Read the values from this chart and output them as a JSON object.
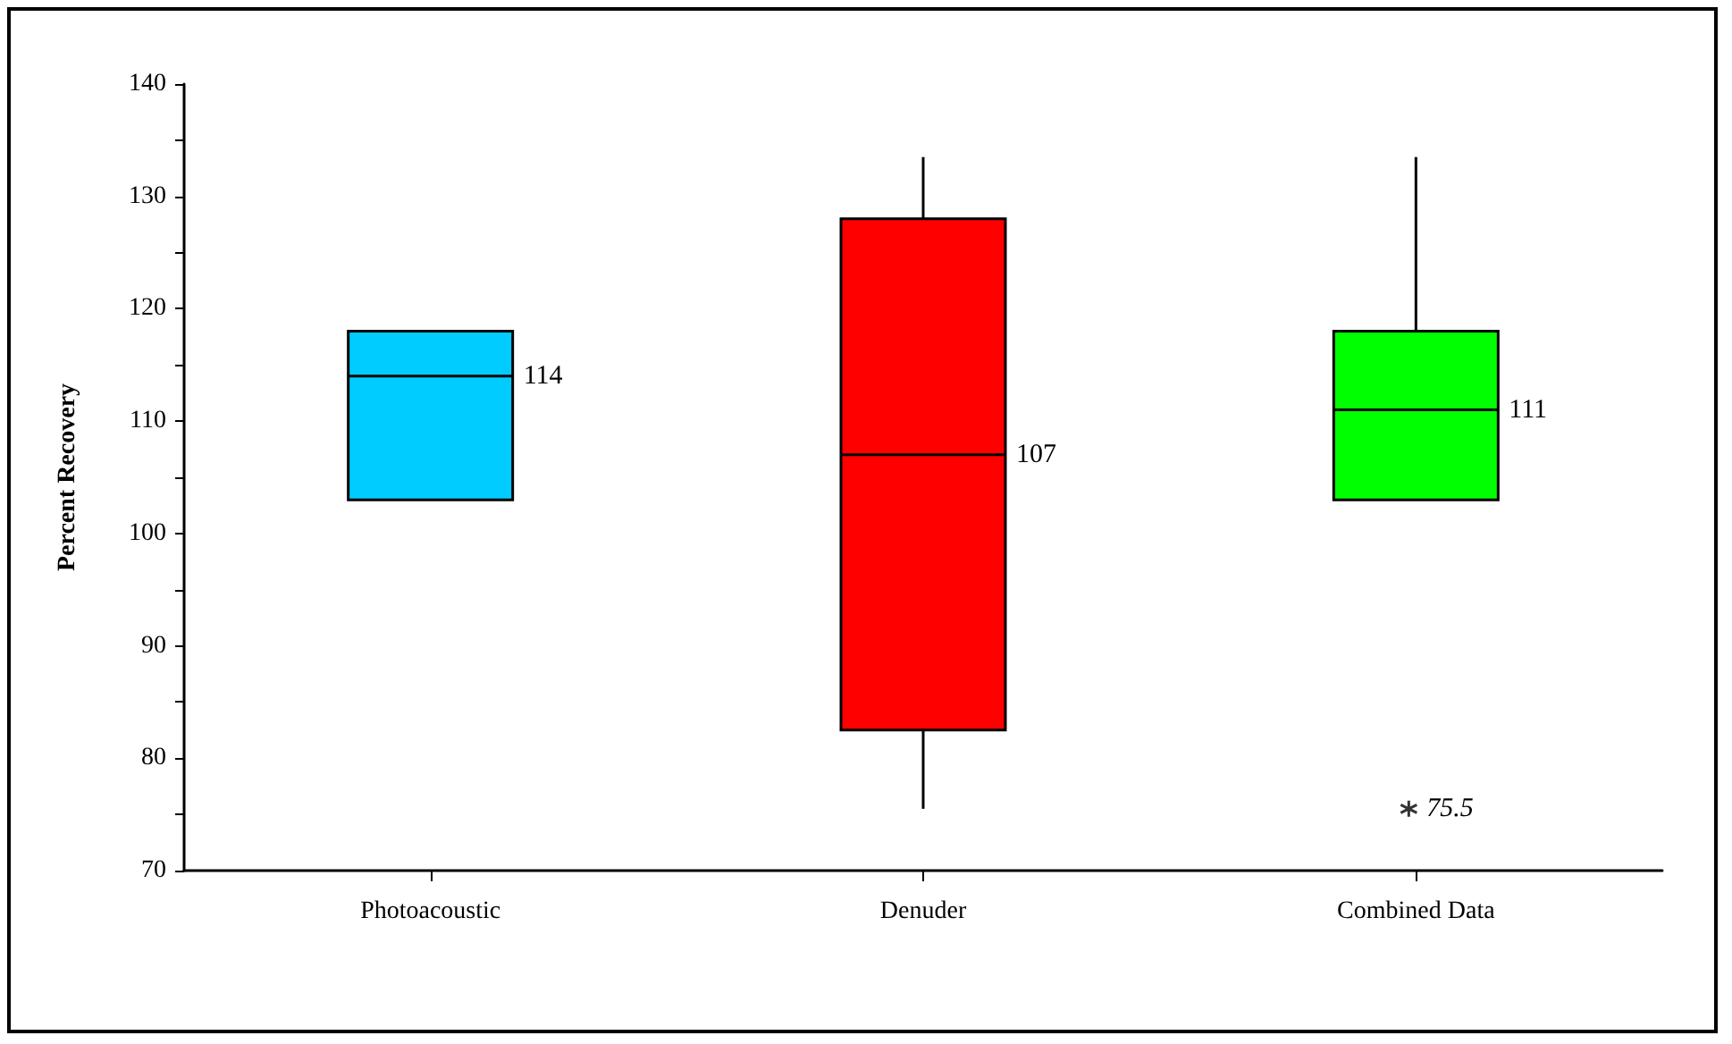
{
  "chart_data": {
    "type": "box",
    "ylabel": "Percent Recovery",
    "categories": [
      "Photoacoustic",
      "Denuder",
      "Combined Data"
    ],
    "boxes": [
      {
        "low": 103,
        "q1": 103,
        "median": 114,
        "q3": 118,
        "high": 118
      },
      {
        "low": 75.5,
        "q1": 82.5,
        "median": 107,
        "q3": 128,
        "high": 133.5
      },
      {
        "low": 103,
        "q1": 103,
        "median": 111,
        "q3": 118,
        "high": 133.5,
        "outliers": [
          75.5
        ]
      }
    ],
    "colors": [
      "#00ccff",
      "#ff0000",
      "#00ff00"
    ],
    "ylim": [
      70,
      140
    ],
    "yticks": [
      70,
      {
        "value": 75,
        "label": null
      },
      80,
      {
        "value": 85,
        "label": null
      },
      90,
      {
        "value": 95,
        "label": null
      },
      100,
      {
        "value": 105,
        "label": null
      },
      110,
      {
        "value": 115,
        "label": null
      },
      120,
      {
        "value": 125,
        "label": null
      },
      130,
      {
        "value": 135,
        "label": null
      },
      140
    ],
    "annotations": [
      "114",
      "107",
      "111",
      "75.5"
    ],
    "grid": false,
    "legend": false
  }
}
